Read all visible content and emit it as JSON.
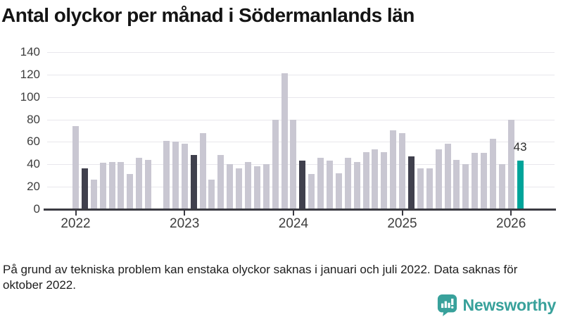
{
  "chart_data": {
    "type": "bar",
    "title": "Antal olyckor per månad i Södermanlands län",
    "ylabel": "",
    "xlabel": "",
    "ylim": [
      0,
      140
    ],
    "yticks": [
      0,
      20,
      40,
      60,
      80,
      100,
      120,
      140
    ],
    "xtick_years": [
      "2022",
      "2023",
      "2024",
      "2025",
      "2026"
    ],
    "grid": "horizontal",
    "annotation": {
      "text": "43",
      "month": "feb 2026"
    },
    "series": [
      {
        "name": "Olyckor per månad",
        "points": [
          {
            "month": "jan 2022",
            "value": 74,
            "role": "normal"
          },
          {
            "month": "feb 2022",
            "value": 36,
            "role": "dark"
          },
          {
            "month": "mar 2022",
            "value": 26,
            "role": "normal"
          },
          {
            "month": "apr 2022",
            "value": 41,
            "role": "normal"
          },
          {
            "month": "maj 2022",
            "value": 42,
            "role": "normal"
          },
          {
            "month": "jun 2022",
            "value": 42,
            "role": "normal"
          },
          {
            "month": "jul 2022",
            "value": 31,
            "role": "normal"
          },
          {
            "month": "aug 2022",
            "value": 46,
            "role": "normal"
          },
          {
            "month": "sep 2022",
            "value": 44,
            "role": "normal"
          },
          {
            "month": "okt 2022",
            "value": null,
            "role": "missing"
          },
          {
            "month": "nov 2022",
            "value": 61,
            "role": "normal"
          },
          {
            "month": "dec 2022",
            "value": 60,
            "role": "normal"
          },
          {
            "month": "jan 2023",
            "value": 58,
            "role": "normal"
          },
          {
            "month": "feb 2023",
            "value": 48,
            "role": "dark"
          },
          {
            "month": "mar 2023",
            "value": 68,
            "role": "normal"
          },
          {
            "month": "apr 2023",
            "value": 26,
            "role": "normal"
          },
          {
            "month": "maj 2023",
            "value": 48,
            "role": "normal"
          },
          {
            "month": "jun 2023",
            "value": 40,
            "role": "normal"
          },
          {
            "month": "jul 2023",
            "value": 36,
            "role": "normal"
          },
          {
            "month": "aug 2023",
            "value": 42,
            "role": "normal"
          },
          {
            "month": "sep 2023",
            "value": 38,
            "role": "normal"
          },
          {
            "month": "okt 2023",
            "value": 40,
            "role": "normal"
          },
          {
            "month": "nov 2023",
            "value": 80,
            "role": "normal"
          },
          {
            "month": "dec 2023",
            "value": 121,
            "role": "normal"
          },
          {
            "month": "jan 2024",
            "value": 80,
            "role": "normal"
          },
          {
            "month": "feb 2024",
            "value": 43,
            "role": "dark"
          },
          {
            "month": "mar 2024",
            "value": 31,
            "role": "normal"
          },
          {
            "month": "apr 2024",
            "value": 46,
            "role": "normal"
          },
          {
            "month": "maj 2024",
            "value": 43,
            "role": "normal"
          },
          {
            "month": "jun 2024",
            "value": 32,
            "role": "normal"
          },
          {
            "month": "jul 2024",
            "value": 46,
            "role": "normal"
          },
          {
            "month": "aug 2024",
            "value": 42,
            "role": "normal"
          },
          {
            "month": "sep 2024",
            "value": 51,
            "role": "normal"
          },
          {
            "month": "okt 2024",
            "value": 53,
            "role": "normal"
          },
          {
            "month": "nov 2024",
            "value": 51,
            "role": "normal"
          },
          {
            "month": "dec 2024",
            "value": 70,
            "role": "normal"
          },
          {
            "month": "jan 2025",
            "value": 68,
            "role": "normal"
          },
          {
            "month": "feb 2025",
            "value": 47,
            "role": "dark"
          },
          {
            "month": "mar 2025",
            "value": 36,
            "role": "normal"
          },
          {
            "month": "apr 2025",
            "value": 36,
            "role": "normal"
          },
          {
            "month": "maj 2025",
            "value": 53,
            "role": "normal"
          },
          {
            "month": "jun 2025",
            "value": 58,
            "role": "normal"
          },
          {
            "month": "jul 2025",
            "value": 44,
            "role": "normal"
          },
          {
            "month": "aug 2025",
            "value": 40,
            "role": "normal"
          },
          {
            "month": "sep 2025",
            "value": 50,
            "role": "normal"
          },
          {
            "month": "okt 2025",
            "value": 50,
            "role": "normal"
          },
          {
            "month": "nov 2025",
            "value": 63,
            "role": "normal"
          },
          {
            "month": "dec 2025",
            "value": 40,
            "role": "normal"
          },
          {
            "month": "jan 2026",
            "value": 80,
            "role": "normal"
          },
          {
            "month": "feb 2026",
            "value": 43,
            "role": "current"
          }
        ]
      }
    ]
  },
  "footnote": "På grund av tekniska problem kan enstaka olyckor saknas i januari och juli 2022. Data saknas för oktober 2022.",
  "branding": {
    "logo_text": "Newsworthy"
  },
  "colors": {
    "title": "#141414",
    "bar": "#c9c7d2",
    "bar_dark": "#40404d",
    "bar_current": "#00a49a",
    "grid": "#e8e7ec",
    "axis": "#3b3b42",
    "tick_text": "#3d3d3d",
    "brand": "#38a19b"
  }
}
